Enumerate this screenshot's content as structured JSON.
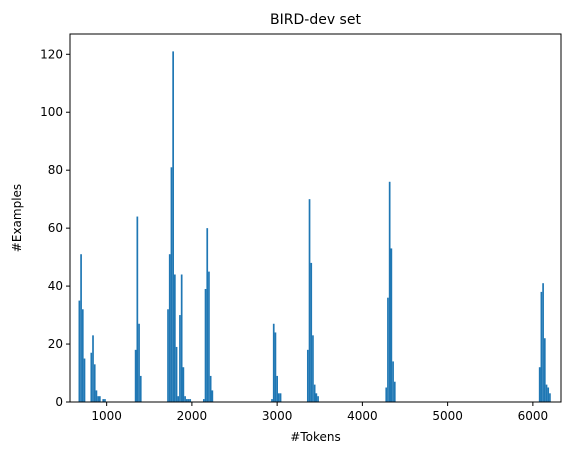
{
  "chart_data": {
    "type": "bar",
    "title": "BIRD-dev set",
    "xlabel": "#Tokens",
    "ylabel": "#Examples",
    "xlim": [
      570,
      6330
    ],
    "ylim": [
      0,
      127
    ],
    "xticks": [
      1000,
      2000,
      3000,
      4000,
      5000,
      6000
    ],
    "yticks": [
      0,
      20,
      40,
      60,
      80,
      100,
      120
    ],
    "grid": false,
    "bar_width": 20,
    "bar_color": "#1f77b4",
    "series": [
      {
        "x": [
          680,
          700,
          720,
          740,
          820,
          840,
          860,
          880,
          900,
          920,
          960,
          980,
          1340,
          1360,
          1380,
          1400,
          1720,
          1740,
          1760,
          1780,
          1800,
          1820,
          1840,
          1860,
          1880,
          1900,
          1920,
          1940,
          1960,
          1980,
          2140,
          2160,
          2180,
          2200,
          2220,
          2240,
          2940,
          2960,
          2980,
          3000,
          3020,
          3040,
          3360,
          3380,
          3400,
          3420,
          3440,
          3460,
          3480,
          4280,
          4300,
          4320,
          4340,
          4360,
          4380,
          6080,
          6100,
          6120,
          6140,
          6160,
          6180,
          6200
        ],
        "values": [
          35,
          51,
          32,
          15,
          17,
          23,
          13,
          4,
          2,
          2,
          1,
          1,
          18,
          64,
          27,
          9,
          32,
          51,
          81,
          121,
          44,
          19,
          2,
          30,
          44,
          12,
          2,
          1,
          1,
          1,
          1,
          39,
          60,
          45,
          9,
          4,
          1,
          27,
          24,
          9,
          3,
          3,
          18,
          70,
          48,
          23,
          6,
          3,
          2,
          5,
          36,
          76,
          53,
          14,
          7,
          12,
          38,
          41,
          22,
          6,
          5,
          3
        ]
      }
    ]
  }
}
